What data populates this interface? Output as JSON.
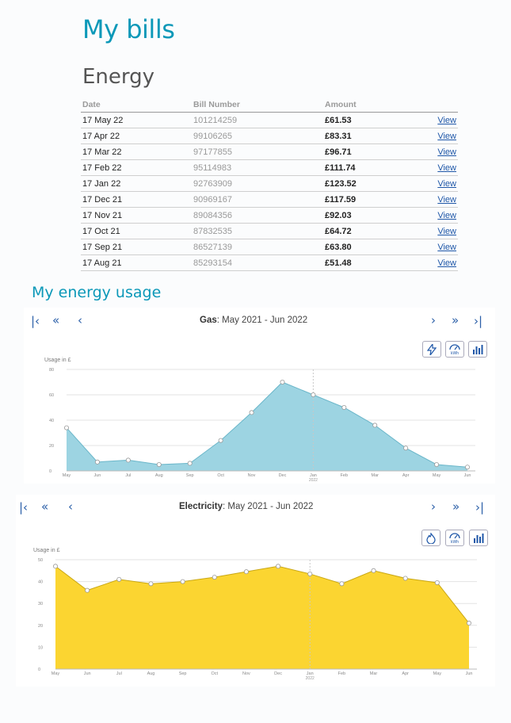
{
  "page": {
    "title": "My bills"
  },
  "energy": {
    "title": "Energy",
    "columns": {
      "date": "Date",
      "bill_number": "Bill Number",
      "amount": "Amount"
    },
    "view_label": "View",
    "bills": [
      {
        "date": "17 May 22",
        "number": "101214259",
        "amount": "£61.53"
      },
      {
        "date": "17 Apr 22",
        "number": "99106265",
        "amount": "£83.31"
      },
      {
        "date": "17 Mar 22",
        "number": "97177855",
        "amount": "£96.71"
      },
      {
        "date": "17 Feb 22",
        "number": "95114983",
        "amount": "£111.74"
      },
      {
        "date": "17 Jan 22",
        "number": "92763909",
        "amount": "£123.52"
      },
      {
        "date": "17 Dec 21",
        "number": "90969167",
        "amount": "£117.59"
      },
      {
        "date": "17 Nov 21",
        "number": "89084356",
        "amount": "£92.03"
      },
      {
        "date": "17 Oct 21",
        "number": "87832535",
        "amount": "£64.72"
      },
      {
        "date": "17 Sep 21",
        "number": "86527139",
        "amount": "£63.80"
      },
      {
        "date": "17 Aug 21",
        "number": "85293154",
        "amount": "£51.48"
      }
    ]
  },
  "usage": {
    "title": "My energy usage",
    "nav_icons": [
      "first-page-icon",
      "double-chevron-left-icon",
      "chevron-left-icon",
      "chevron-right-icon",
      "double-chevron-right-icon",
      "last-page-icon"
    ],
    "nav_glyphs": {
      "first": "|‹",
      "prev_double": "«",
      "prev": "‹",
      "next": "›",
      "next_double": "»",
      "last": "›|"
    }
  },
  "chart_data": [
    {
      "type": "area",
      "fuel": "Gas",
      "period": ": May 2021 - Jun 2022",
      "ylabel": "Usage in £",
      "ylim": [
        0,
        80
      ],
      "yticks": [
        "0",
        "20",
        "40",
        "60",
        "80"
      ],
      "categories": [
        "May",
        "Jun",
        "Jul",
        "Aug",
        "Sep",
        "Oct",
        "Nov",
        "Dec",
        "Jan",
        "Feb",
        "Mar",
        "Apr",
        "May",
        "Jun"
      ],
      "year_marker": "2022",
      "year_marker_index": 8,
      "values": [
        34,
        7,
        8.5,
        5,
        6,
        24,
        46,
        70,
        60,
        50,
        36,
        18,
        5,
        3
      ],
      "color": "#9dd4e2",
      "line_color": "#6ab6c9",
      "toolbar_icons": [
        "electricity-icon",
        "kwh-icon",
        "bar-chart-icon"
      ]
    },
    {
      "type": "area",
      "fuel": "Electricity",
      "period": ": May 2021 - Jun 2022",
      "ylabel": "Usage in £",
      "ylim": [
        0,
        50
      ],
      "yticks": [
        "0",
        "10",
        "20",
        "30",
        "40",
        "50"
      ],
      "categories": [
        "May",
        "Jun",
        "Jul",
        "Aug",
        "Sep",
        "Oct",
        "Nov",
        "Dec",
        "Jan",
        "Feb",
        "Mar",
        "Apr",
        "May",
        "Jun"
      ],
      "year_marker": "2022",
      "year_marker_index": 8,
      "values": [
        47,
        36,
        41,
        39,
        40,
        42,
        44.5,
        47,
        43.5,
        39,
        45,
        41.5,
        39.5,
        21
      ],
      "color": "#fbd531",
      "line_color": "#c9a714",
      "toolbar_icons": [
        "gas-icon",
        "kwh-icon",
        "bar-chart-icon"
      ]
    }
  ]
}
